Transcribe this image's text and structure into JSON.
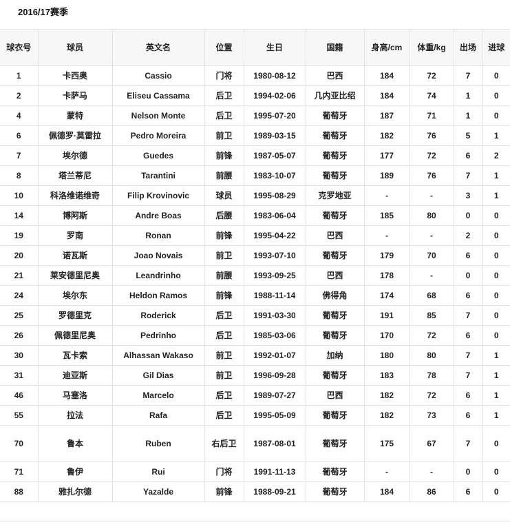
{
  "title": "2016/17赛季",
  "headers": [
    "球衣号",
    "球员",
    "英文名",
    "位置",
    "生日",
    "国籍",
    "身高/cm",
    "体重/kg",
    "出场",
    "进球"
  ],
  "rows": [
    [
      "1",
      "卡西奥",
      "Cassio",
      "门将",
      "1980-08-12",
      "巴西",
      "184",
      "72",
      "7",
      "0"
    ],
    [
      "2",
      "卡萨马",
      "Eliseu Cassama",
      "后卫",
      "1994-02-06",
      "几内亚比绍",
      "184",
      "74",
      "1",
      "0"
    ],
    [
      "4",
      "蒙特",
      "Nelson Monte",
      "后卫",
      "1995-07-20",
      "葡萄牙",
      "187",
      "71",
      "1",
      "0"
    ],
    [
      "6",
      "佩德罗·莫雷拉",
      "Pedro Moreira",
      "前卫",
      "1989-03-15",
      "葡萄牙",
      "182",
      "76",
      "5",
      "1"
    ],
    [
      "7",
      "埃尔德",
      "Guedes",
      "前锋",
      "1987-05-07",
      "葡萄牙",
      "177",
      "72",
      "6",
      "2"
    ],
    [
      "8",
      "塔兰蒂尼",
      "Tarantini",
      "前腰",
      "1983-10-07",
      "葡萄牙",
      "189",
      "76",
      "7",
      "1"
    ],
    [
      "10",
      "科洛维诺维奇",
      "Filip Krovinovic",
      "球员",
      "1995-08-29",
      "克罗地亚",
      "-",
      "-",
      "3",
      "1"
    ],
    [
      "14",
      "博阿斯",
      "Andre Boas",
      "后腰",
      "1983-06-04",
      "葡萄牙",
      "185",
      "80",
      "0",
      "0"
    ],
    [
      "19",
      "罗南",
      "Ronan",
      "前锋",
      "1995-04-22",
      "巴西",
      "-",
      "-",
      "2",
      "0"
    ],
    [
      "20",
      "诺瓦斯",
      "Joao Novais",
      "前卫",
      "1993-07-10",
      "葡萄牙",
      "179",
      "70",
      "6",
      "0"
    ],
    [
      "21",
      "莱安德里尼奥",
      "Leandrinho",
      "前腰",
      "1993-09-25",
      "巴西",
      "178",
      "-",
      "0",
      "0"
    ],
    [
      "24",
      "埃尔东",
      "Heldon Ramos",
      "前锋",
      "1988-11-14",
      "佛得角",
      "174",
      "68",
      "6",
      "0"
    ],
    [
      "25",
      "罗德里克",
      "Roderick",
      "后卫",
      "1991-03-30",
      "葡萄牙",
      "191",
      "85",
      "7",
      "0"
    ],
    [
      "26",
      "佩德里尼奥",
      "Pedrinho",
      "后卫",
      "1985-03-06",
      "葡萄牙",
      "170",
      "72",
      "6",
      "0"
    ],
    [
      "30",
      "瓦卡索",
      "Alhassan Wakaso",
      "前卫",
      "1992-01-07",
      "加纳",
      "180",
      "80",
      "7",
      "1"
    ],
    [
      "31",
      "迪亚斯",
      "Gil Dias",
      "前卫",
      "1996-09-28",
      "葡萄牙",
      "183",
      "78",
      "7",
      "1"
    ],
    [
      "46",
      "马塞洛",
      "Marcelo",
      "后卫",
      "1989-07-27",
      "巴西",
      "182",
      "72",
      "6",
      "1"
    ],
    [
      "55",
      "拉法",
      "Rafa",
      "后卫",
      "1995-05-09",
      "葡萄牙",
      "182",
      "73",
      "6",
      "1"
    ],
    [
      "70",
      "鲁本",
      "Ruben",
      "右后卫",
      "1987-08-01",
      "葡萄牙",
      "175",
      "67",
      "7",
      "0"
    ],
    [
      "71",
      "鲁伊",
      "Rui",
      "门将",
      "1991-11-13",
      "葡萄牙",
      "-",
      "-",
      "0",
      "0"
    ],
    [
      "88",
      "雅扎尔德",
      "Yazalde",
      "前锋",
      "1988-09-21",
      "葡萄牙",
      "184",
      "86",
      "6",
      "0"
    ]
  ]
}
